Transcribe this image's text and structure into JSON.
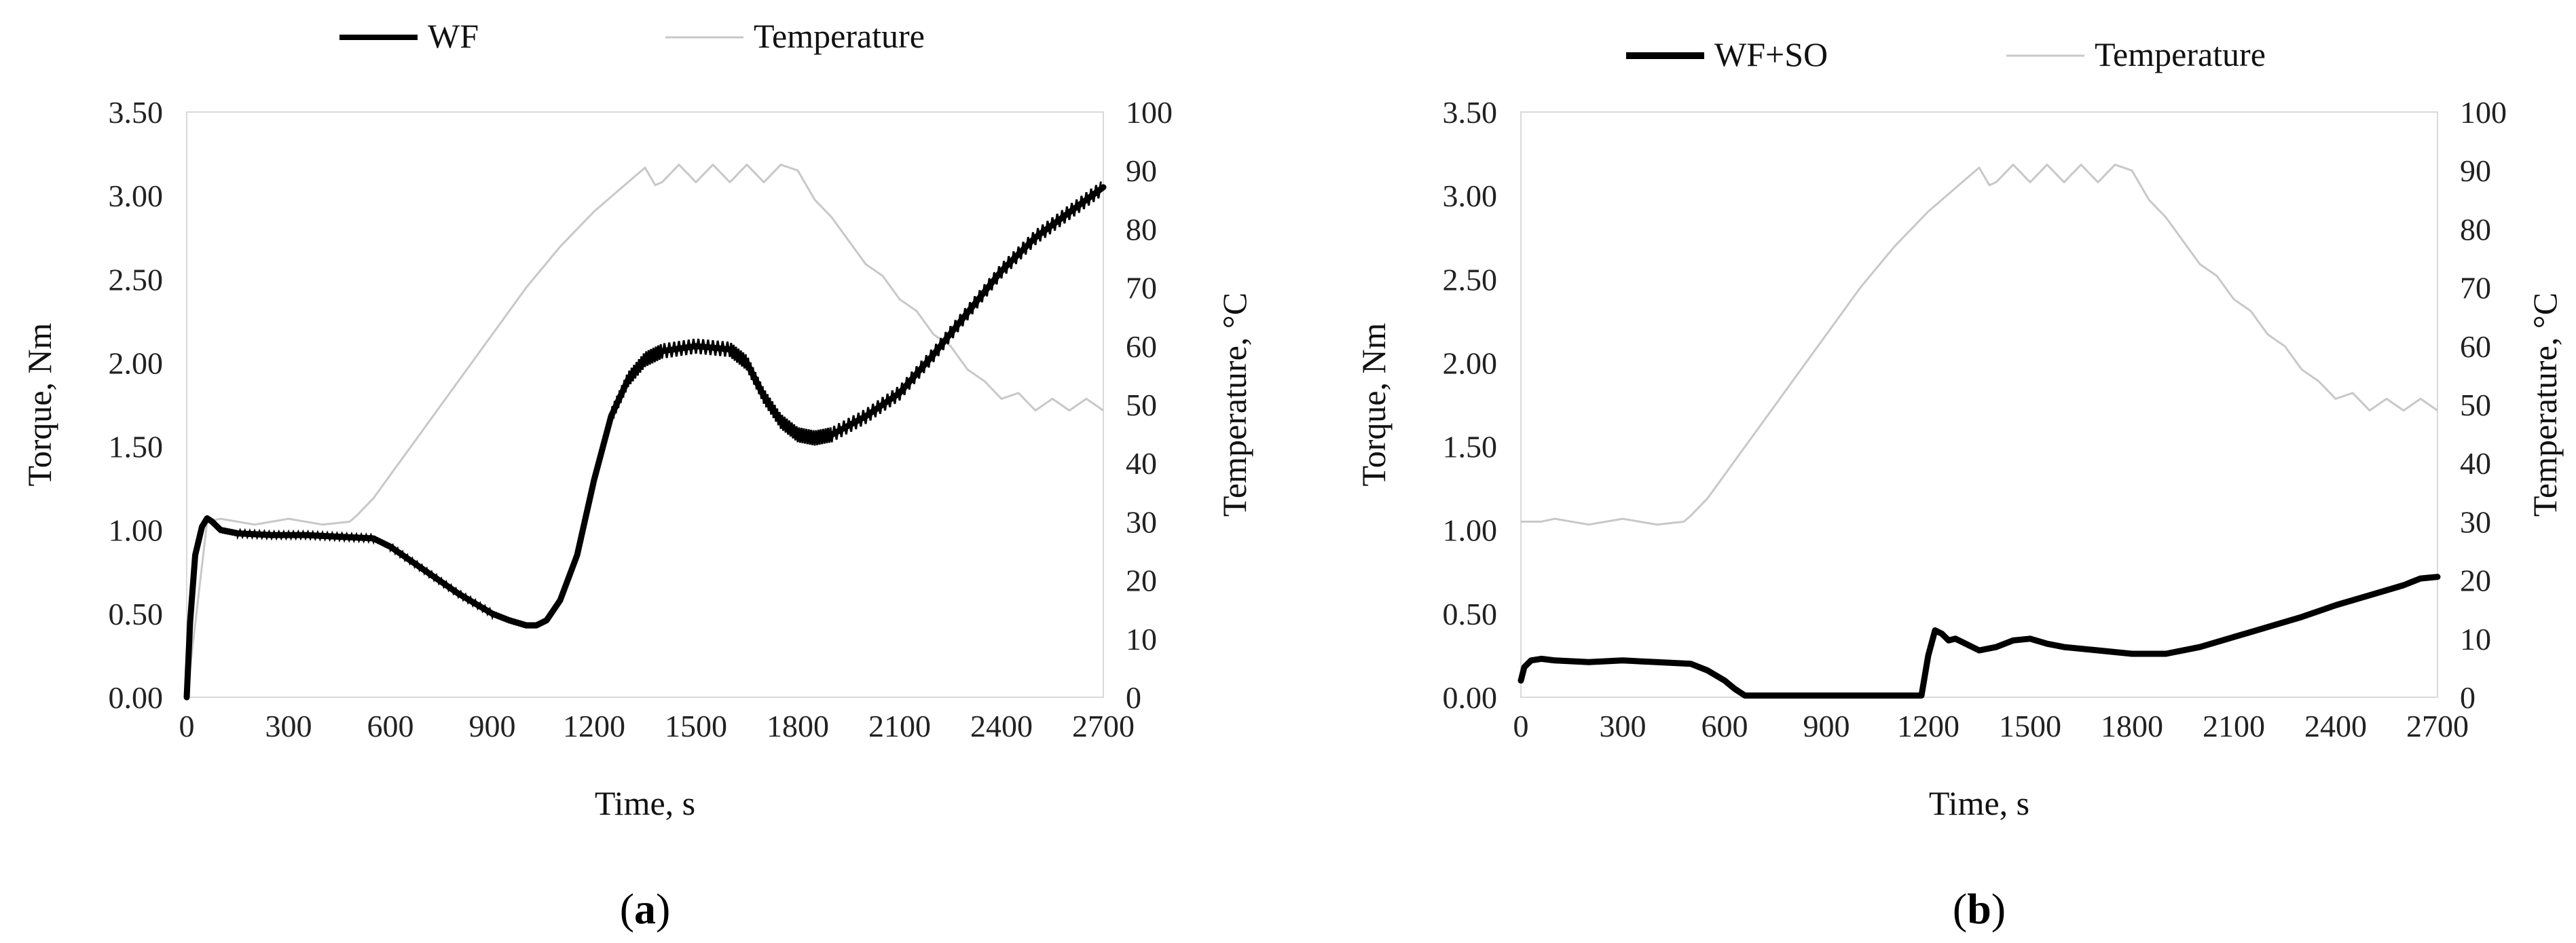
{
  "chart_data": [
    {
      "type": "line",
      "panel_label": "a",
      "xlabel": "Time, s",
      "ylabel_left": "Torque, Nm",
      "ylabel_right": "Temperature, °C",
      "xlim": [
        0,
        2700
      ],
      "ylim_left": [
        0,
        3.5
      ],
      "ylim_right": [
        0,
        100
      ],
      "xticks": [
        "0",
        "300",
        "600",
        "900",
        "1200",
        "1500",
        "1800",
        "2100",
        "2400",
        "2700"
      ],
      "yticks_left": [
        "0.00",
        "0.50",
        "1.00",
        "1.50",
        "2.00",
        "2.50",
        "3.00",
        "3.50"
      ],
      "yticks_right": [
        "0",
        "10",
        "20",
        "30",
        "40",
        "50",
        "60",
        "70",
        "80",
        "90",
        "100"
      ],
      "grid": false,
      "legend_placement": "top",
      "series": [
        {
          "name": "WF",
          "axis": "left",
          "color": "#000000",
          "style": "thick-noisy",
          "x": [
            0,
            10,
            25,
            45,
            60,
            75,
            100,
            150,
            250,
            350,
            450,
            550,
            600,
            700,
            800,
            900,
            950,
            1000,
            1030,
            1060,
            1100,
            1150,
            1200,
            1250,
            1300,
            1350,
            1400,
            1500,
            1600,
            1650,
            1700,
            1750,
            1800,
            1850,
            1900,
            2000,
            2100,
            2200,
            2300,
            2400,
            2500,
            2600,
            2700
          ],
          "values": [
            0,
            0.45,
            0.85,
            1.02,
            1.07,
            1.05,
            1.0,
            0.98,
            0.97,
            0.97,
            0.96,
            0.95,
            0.9,
            0.76,
            0.62,
            0.5,
            0.46,
            0.43,
            0.43,
            0.46,
            0.58,
            0.85,
            1.3,
            1.68,
            1.9,
            2.02,
            2.07,
            2.1,
            2.08,
            2.0,
            1.8,
            1.65,
            1.57,
            1.55,
            1.57,
            1.68,
            1.82,
            2.05,
            2.3,
            2.55,
            2.75,
            2.9,
            3.05
          ]
        },
        {
          "name": "Temperature",
          "axis": "right",
          "color": "#c8c8c8",
          "style": "thin",
          "x": [
            0,
            60,
            100,
            200,
            300,
            400,
            480,
            500,
            550,
            600,
            700,
            800,
            900,
            1000,
            1100,
            1200,
            1300,
            1350,
            1380,
            1400,
            1450,
            1500,
            1550,
            1600,
            1650,
            1700,
            1750,
            1800,
            1850,
            1900,
            1950,
            2000,
            2050,
            2100,
            2150,
            2200,
            2250,
            2300,
            2350,
            2400,
            2450,
            2500,
            2550,
            2600,
            2650,
            2700
          ],
          "values": [
            0,
            30,
            30.5,
            29.5,
            30.5,
            29.5,
            30,
            31,
            34,
            38,
            46,
            54,
            62,
            70,
            77,
            83,
            88,
            90.5,
            87.5,
            88,
            91,
            88,
            91,
            88,
            91,
            88,
            91,
            90,
            85,
            82,
            78,
            74,
            72,
            68,
            66,
            62,
            60,
            56,
            54,
            51,
            52,
            49,
            51,
            49,
            51,
            49
          ]
        }
      ]
    },
    {
      "type": "line",
      "panel_label": "b",
      "xlabel": "Time, s",
      "ylabel_left": "Torque, Nm",
      "ylabel_right": "Temperature, °C",
      "xlim": [
        0,
        2700
      ],
      "ylim_left": [
        0,
        3.5
      ],
      "ylim_right": [
        0,
        100
      ],
      "xticks": [
        "0",
        "300",
        "600",
        "900",
        "1200",
        "1500",
        "1800",
        "2100",
        "2400",
        "2700"
      ],
      "yticks_left": [
        "0.00",
        "0.50",
        "1.00",
        "1.50",
        "2.00",
        "2.50",
        "3.00",
        "3.50"
      ],
      "yticks_right": [
        "0",
        "10",
        "20",
        "30",
        "40",
        "50",
        "60",
        "70",
        "80",
        "90",
        "100"
      ],
      "grid": false,
      "legend_placement": "top",
      "series": [
        {
          "name": "WF+SO",
          "axis": "left",
          "color": "#000000",
          "style": "thick",
          "x": [
            0,
            10,
            30,
            60,
            100,
            200,
            300,
            400,
            500,
            550,
            600,
            630,
            660,
            700,
            800,
            900,
            1000,
            1100,
            1180,
            1200,
            1220,
            1240,
            1260,
            1280,
            1300,
            1350,
            1400,
            1450,
            1500,
            1550,
            1600,
            1700,
            1800,
            1900,
            2000,
            2100,
            2200,
            2300,
            2400,
            2500,
            2600,
            2650,
            2700
          ],
          "values": [
            0.1,
            0.18,
            0.22,
            0.23,
            0.22,
            0.21,
            0.22,
            0.21,
            0.2,
            0.16,
            0.1,
            0.05,
            0.01,
            0.01,
            0.01,
            0.01,
            0.01,
            0.01,
            0.01,
            0.25,
            0.4,
            0.38,
            0.34,
            0.35,
            0.33,
            0.28,
            0.3,
            0.34,
            0.35,
            0.32,
            0.3,
            0.28,
            0.26,
            0.26,
            0.3,
            0.36,
            0.42,
            0.48,
            0.55,
            0.61,
            0.67,
            0.71,
            0.72
          ]
        },
        {
          "name": "Temperature",
          "axis": "right",
          "color": "#c8c8c8",
          "style": "thin",
          "x": [
            0,
            60,
            100,
            200,
            300,
            400,
            480,
            500,
            550,
            600,
            700,
            800,
            900,
            1000,
            1100,
            1200,
            1300,
            1350,
            1380,
            1400,
            1450,
            1500,
            1550,
            1600,
            1650,
            1700,
            1750,
            1800,
            1850,
            1900,
            1950,
            2000,
            2050,
            2100,
            2150,
            2200,
            2250,
            2300,
            2350,
            2400,
            2450,
            2500,
            2550,
            2600,
            2650,
            2700
          ],
          "values": [
            30,
            30,
            30.5,
            29.5,
            30.5,
            29.5,
            30,
            31,
            34,
            38,
            46,
            54,
            62,
            70,
            77,
            83,
            88,
            90.5,
            87.5,
            88,
            91,
            88,
            91,
            88,
            91,
            88,
            91,
            90,
            85,
            82,
            78,
            74,
            72,
            68,
            66,
            62,
            60,
            56,
            54,
            51,
            52,
            49,
            51,
            49,
            51,
            49
          ]
        }
      ]
    }
  ]
}
